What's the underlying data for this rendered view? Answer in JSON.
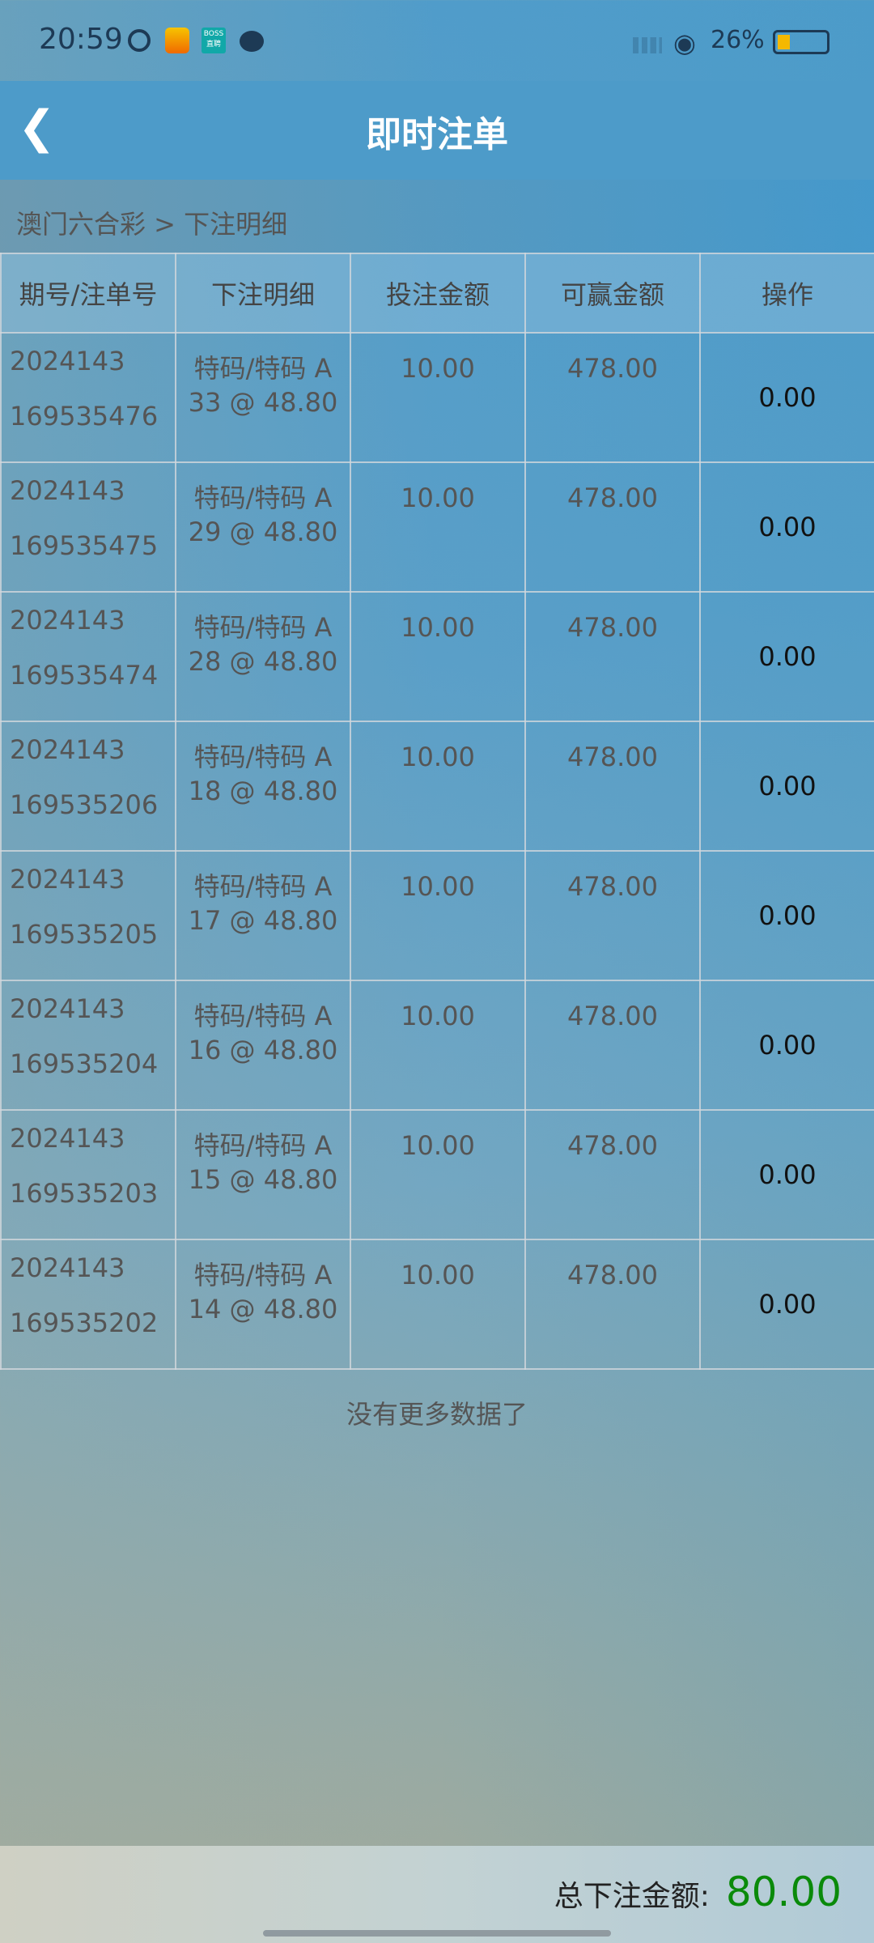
{
  "status_bar": {
    "time": "20:59",
    "battery": "26%",
    "battery_level": 0.26,
    "icons": [
      "play-icon",
      "mail-icon",
      "boss-app-icon",
      "wechat-icon",
      "signal-icon",
      "wifi-icon",
      "battery-icon"
    ],
    "boss_label": "BOSS直聘"
  },
  "header": {
    "title": "即时注单",
    "back_icon": "chevron-left-icon"
  },
  "breadcrumb": "澳门六合彩 > 下注明细",
  "table": {
    "columns": [
      "期号/注单号",
      "下注明细",
      "投注金额",
      "可赢金额",
      "操作"
    ],
    "rows": [
      {
        "period": "2024143",
        "order": "169535476",
        "detail": "特码/特码 A 33 @ 48.80",
        "bet": "10.00",
        "win": "478.00",
        "op": "0.00"
      },
      {
        "period": "2024143",
        "order": "169535475",
        "detail": "特码/特码 A 29 @ 48.80",
        "bet": "10.00",
        "win": "478.00",
        "op": "0.00"
      },
      {
        "period": "2024143",
        "order": "169535474",
        "detail": "特码/特码 A 28 @ 48.80",
        "bet": "10.00",
        "win": "478.00",
        "op": "0.00"
      },
      {
        "period": "2024143",
        "order": "169535206",
        "detail": "特码/特码 A 18 @ 48.80",
        "bet": "10.00",
        "win": "478.00",
        "op": "0.00"
      },
      {
        "period": "2024143",
        "order": "169535205",
        "detail": "特码/特码 A 17 @ 48.80",
        "bet": "10.00",
        "win": "478.00",
        "op": "0.00"
      },
      {
        "period": "2024143",
        "order": "169535204",
        "detail": "特码/特码 A 16 @ 48.80",
        "bet": "10.00",
        "win": "478.00",
        "op": "0.00"
      },
      {
        "period": "2024143",
        "order": "169535203",
        "detail": "特码/特码 A 15 @ 48.80",
        "bet": "10.00",
        "win": "478.00",
        "op": "0.00"
      },
      {
        "period": "2024143",
        "order": "169535202",
        "detail": "特码/特码 A 14 @ 48.80",
        "bet": "10.00",
        "win": "478.00",
        "op": "0.00"
      }
    ]
  },
  "no_more": "没有更多数据了",
  "footer": {
    "label": "总下注金额:",
    "total": "80.00",
    "total_color": "#0a8a0a"
  }
}
